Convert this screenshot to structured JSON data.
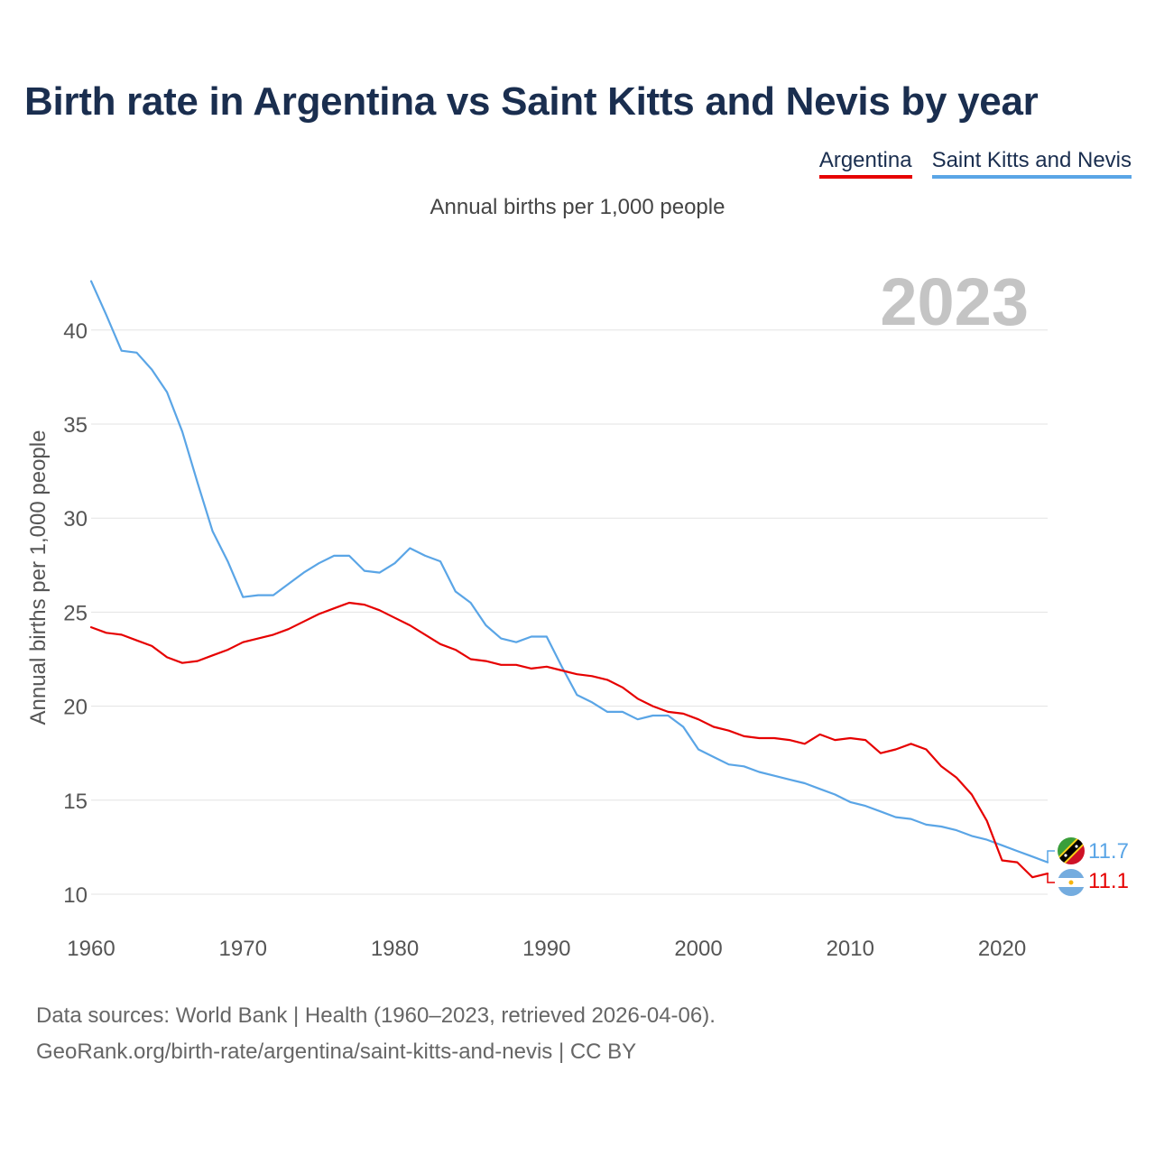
{
  "title": "Birth rate in Argentina vs Saint Kitts and Nevis by year",
  "subtitle": "Annual births per 1,000 people",
  "legend": [
    {
      "name": "Argentina",
      "color": "#e60000"
    },
    {
      "name": "Saint Kitts and Nevis",
      "color": "#5aa5e6"
    }
  ],
  "year_watermark": "2023",
  "footer": {
    "line1": "Data sources: World Bank | Health (1960–2023, retrieved 2026-04-06).",
    "line2": "GeoRank.org/birth-rate/argentina/saint-kitts-and-nevis | CC BY"
  },
  "end_labels": {
    "saint_kitts": "11.7",
    "argentina": "11.1"
  },
  "chart_data": {
    "type": "line",
    "title": "Birth rate in Argentina vs Saint Kitts and Nevis by year",
    "ylabel": "Annual births per 1,000 people",
    "xlabel": "",
    "xlim": [
      1960,
      2023
    ],
    "ylim": [
      10,
      42
    ],
    "yticks": [
      10,
      15,
      20,
      25,
      30,
      35,
      40
    ],
    "xticks": [
      1960,
      1970,
      1980,
      1990,
      2000,
      2010,
      2020
    ],
    "grid": true,
    "x": [
      1960,
      1961,
      1962,
      1963,
      1964,
      1965,
      1966,
      1967,
      1968,
      1969,
      1970,
      1971,
      1972,
      1973,
      1974,
      1975,
      1976,
      1977,
      1978,
      1979,
      1980,
      1981,
      1982,
      1983,
      1984,
      1985,
      1986,
      1987,
      1988,
      1989,
      1990,
      1991,
      1992,
      1993,
      1994,
      1995,
      1996,
      1997,
      1998,
      1999,
      2000,
      2001,
      2002,
      2003,
      2004,
      2005,
      2006,
      2007,
      2008,
      2009,
      2010,
      2011,
      2012,
      2013,
      2014,
      2015,
      2016,
      2017,
      2018,
      2019,
      2020,
      2021,
      2022,
      2023
    ],
    "series": [
      {
        "name": "Argentina",
        "color": "#e60000",
        "values": [
          24.2,
          23.9,
          23.8,
          23.5,
          23.2,
          22.6,
          22.3,
          22.4,
          22.7,
          23.0,
          23.4,
          23.6,
          23.8,
          24.1,
          24.5,
          24.9,
          25.2,
          25.5,
          25.4,
          25.1,
          24.7,
          24.3,
          23.8,
          23.3,
          23.0,
          22.5,
          22.4,
          22.2,
          22.2,
          22.0,
          22.1,
          21.9,
          21.7,
          21.6,
          21.4,
          21.0,
          20.4,
          20.0,
          19.7,
          19.6,
          19.3,
          18.9,
          18.7,
          18.4,
          18.3,
          18.3,
          18.2,
          18.0,
          18.5,
          18.2,
          18.3,
          18.2,
          17.5,
          17.7,
          18.0,
          17.7,
          16.8,
          16.2,
          15.3,
          13.9,
          11.8,
          11.7,
          10.9,
          11.1
        ]
      },
      {
        "name": "Saint Kitts and Nevis",
        "color": "#5aa5e6",
        "values": [
          42.6,
          40.8,
          38.9,
          38.8,
          37.9,
          36.7,
          34.6,
          31.9,
          29.3,
          27.7,
          25.8,
          25.9,
          25.9,
          26.5,
          27.1,
          27.6,
          28.0,
          28.0,
          27.2,
          27.1,
          27.6,
          28.4,
          28.0,
          27.7,
          26.1,
          25.5,
          24.3,
          23.6,
          23.4,
          23.7,
          23.7,
          22.1,
          20.6,
          20.2,
          19.7,
          19.7,
          19.3,
          19.5,
          19.5,
          18.9,
          17.7,
          17.3,
          16.9,
          16.8,
          16.5,
          16.3,
          16.1,
          15.9,
          15.6,
          15.3,
          14.9,
          14.7,
          14.4,
          14.1,
          14.0,
          13.7,
          13.6,
          13.4,
          13.1,
          12.9,
          12.6,
          12.3,
          12.0,
          11.7
        ]
      }
    ]
  }
}
